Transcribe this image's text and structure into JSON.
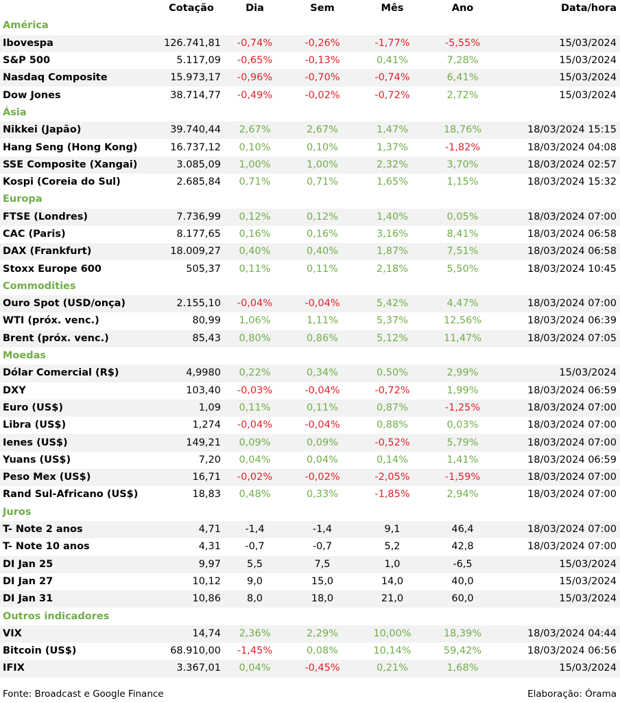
{
  "colors": {
    "positive": "#70ad47",
    "negative": "#e0202a",
    "section": "#70ad47",
    "stripe": "#f2f2f2"
  },
  "headers": [
    "",
    "Cotação",
    "Dia",
    "Sem",
    "Mês",
    "Ano",
    "Data/hora"
  ],
  "sections": [
    {
      "title": "América",
      "rows": [
        [
          "Ibovespa",
          "126.741,81",
          "-0,74%",
          "-0,26%",
          "-1,77%",
          "-5,55%",
          "15/03/2024"
        ],
        [
          "S&P 500",
          "5.117,09",
          "-0,65%",
          "-0,13%",
          "0,41%",
          "7,28%",
          "15/03/2024"
        ],
        [
          "Nasdaq Composite",
          "15.973,17",
          "-0,96%",
          "-0,70%",
          "-0,74%",
          "6,41%",
          "15/03/2024"
        ],
        [
          "Dow Jones",
          "38.714,77",
          "-0,49%",
          "-0,02%",
          "-0,72%",
          "2,72%",
          "15/03/2024"
        ]
      ]
    },
    {
      "title": "Ásia",
      "rows": [
        [
          "Nikkei (Japão)",
          "39.740,44",
          "2,67%",
          "2,67%",
          "1,47%",
          "18,76%",
          "18/03/2024 15:15"
        ],
        [
          "Hang Seng (Hong Kong)",
          "16.737,12",
          "0,10%",
          "0,10%",
          "1,37%",
          "-1,82%",
          "18/03/2024 04:08"
        ],
        [
          "SSE Composite (Xangai)",
          "3.085,09",
          "1,00%",
          "1,00%",
          "2,32%",
          "3,70%",
          "18/03/2024 02:57"
        ],
        [
          "Kospi (Coreia do Sul)",
          "2.685,84",
          "0,71%",
          "0,71%",
          "1,65%",
          "1,15%",
          "18/03/2024 15:32"
        ]
      ]
    },
    {
      "title": "Europa",
      "rows": [
        [
          "FTSE (Londres)",
          "7.736,99",
          "0,12%",
          "0,12%",
          "1,40%",
          "0,05%",
          "18/03/2024 07:00"
        ],
        [
          "CAC (Paris)",
          "8.177,65",
          "0,16%",
          "0,16%",
          "3,16%",
          "8,41%",
          "18/03/2024 06:58"
        ],
        [
          "DAX (Frankfurt)",
          "18.009,27",
          "0,40%",
          "0,40%",
          "1,87%",
          "7,51%",
          "18/03/2024 06:58"
        ],
        [
          "Stoxx Europe 600",
          "505,37",
          "0,11%",
          "0,11%",
          "2,18%",
          "5,50%",
          "18/03/2024 10:45"
        ]
      ]
    },
    {
      "title": "Commodities",
      "rows": [
        [
          "Ouro Spot (USD/onça)",
          "2.155,10",
          "-0,04%",
          "-0,04%",
          "5,42%",
          "4,47%",
          "18/03/2024 07:00"
        ],
        [
          "WTI (próx. venc.)",
          "80,99",
          "1,06%",
          "1,11%",
          "5,37%",
          "12,56%",
          "18/03/2024 06:39"
        ],
        [
          "Brent (próx. venc.)",
          "85,43",
          "0,80%",
          "0,86%",
          "5,12%",
          "11,47%",
          "18/03/2024 07:05"
        ]
      ]
    },
    {
      "title": "Moedas",
      "rows": [
        [
          "Dólar Comercial (R$)",
          "4,9980",
          "0,22%",
          "0,34%",
          "0,50%",
          "2,99%",
          "15/03/2024"
        ],
        [
          "DXY",
          "103,40",
          "-0,03%",
          "-0,04%",
          "-0,72%",
          "1,99%",
          "18/03/2024 06:59"
        ],
        [
          "Euro (US$)",
          "1,09",
          "0,11%",
          "0,11%",
          "0,87%",
          "-1,25%",
          "18/03/2024 07:00"
        ],
        [
          "Libra (US$)",
          "1,274",
          "-0,04%",
          "-0,04%",
          "0,88%",
          "0,03%",
          "18/03/2024 07:00"
        ],
        [
          "Ienes (US$)",
          "149,21",
          "0,09%",
          "0,09%",
          "-0,52%",
          "5,79%",
          "18/03/2024 07:00"
        ],
        [
          "Yuans (US$)",
          "7,20",
          "0,04%",
          "0,04%",
          "0,14%",
          "1,41%",
          "18/03/2024 06:59"
        ],
        [
          "Peso Mex (US$)",
          "16,71",
          "-0,02%",
          "-0,02%",
          "-2,05%",
          "-1,59%",
          "18/03/2024 07:00"
        ],
        [
          "Rand Sul-Africano (US$)",
          "18,83",
          "0,48%",
          "0,33%",
          "-1,85%",
          "2,94%",
          "18/03/2024 07:00"
        ]
      ]
    },
    {
      "title": "Juros",
      "neutral": true,
      "rows": [
        [
          "T- Note 2 anos",
          "4,71",
          "-1,4",
          "-1,4",
          "9,1",
          "46,4",
          "18/03/2024 07:00"
        ],
        [
          "T- Note 10 anos",
          "4,31",
          "-0,7",
          "-0,7",
          "5,2",
          "42,8",
          "18/03/2024 07:00"
        ],
        [
          "DI Jan 25",
          "9,97",
          "5,5",
          "7,5",
          "1,0",
          "-6,5",
          "15/03/2024"
        ],
        [
          "DI Jan 27",
          "10,12",
          "9,0",
          "15,0",
          "14,0",
          "40,0",
          "15/03/2024"
        ],
        [
          "DI Jan 31",
          "10,86",
          "8,0",
          "18,0",
          "21,0",
          "60,0",
          "15/03/2024"
        ]
      ]
    },
    {
      "title": "Outros indicadores",
      "rows": [
        [
          "VIX",
          "14,74",
          "2,36%",
          "2,29%",
          "10,00%",
          "18,39%",
          "18/03/2024 04:44"
        ],
        [
          "Bitcoin (US$)",
          "68.910,00",
          "-1,45%",
          "0,08%",
          "10,14%",
          "59,42%",
          "18/03/2024 06:56"
        ],
        [
          "IFIX",
          "3.367,01",
          "0,04%",
          "-0,45%",
          "0,21%",
          "1,68%",
          "15/03/2024"
        ]
      ]
    }
  ],
  "footer": {
    "source": "Fonte: Broadcast e Google Finance",
    "credit": "Elaboração: Órama"
  }
}
